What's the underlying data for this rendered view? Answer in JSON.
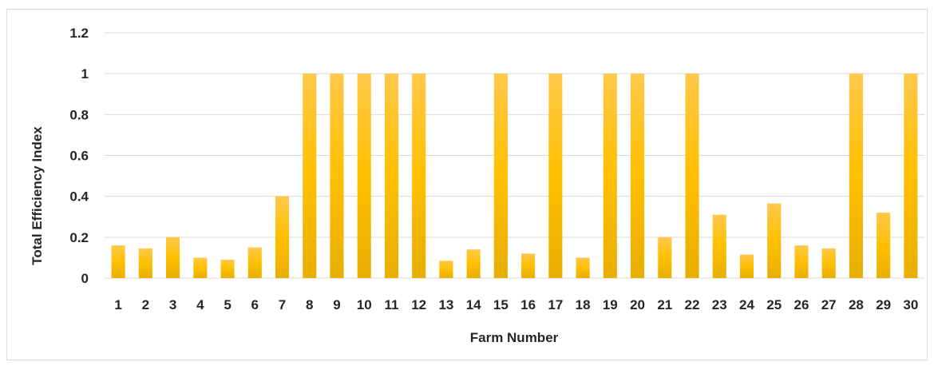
{
  "chart_data": {
    "type": "bar",
    "title": "",
    "xlabel": "Farm Number",
    "ylabel": "Total Efficiency Index",
    "categories": [
      "1",
      "2",
      "3",
      "4",
      "5",
      "6",
      "7",
      "8",
      "9",
      "10",
      "11",
      "12",
      "13",
      "14",
      "15",
      "16",
      "17",
      "18",
      "19",
      "20",
      "21",
      "22",
      "23",
      "24",
      "25",
      "26",
      "27",
      "28",
      "29",
      "30"
    ],
    "values": [
      0.16,
      0.145,
      0.2,
      0.1,
      0.09,
      0.15,
      0.4,
      1,
      1,
      1,
      1,
      1,
      0.085,
      0.14,
      1,
      0.12,
      1,
      0.1,
      1,
      1,
      0.2,
      1,
      0.31,
      0.115,
      0.365,
      0.16,
      0.145,
      1,
      0.32,
      1
    ],
    "ylim": [
      0,
      1.2
    ],
    "yticks": [
      0,
      0.2,
      0.4,
      0.6,
      0.8,
      1,
      1.2
    ],
    "ytick_labels": [
      "0",
      "0.2",
      "0.4",
      "0.6",
      "0.8",
      "1",
      "1.2"
    ],
    "grid": true,
    "legend": "none",
    "colors": {
      "bar_top": "#ffc84a",
      "bar_mid": "#ffc000",
      "bar_bottom": "#e8ae00",
      "grid": "#d9d9d9",
      "text": "#262626"
    }
  }
}
